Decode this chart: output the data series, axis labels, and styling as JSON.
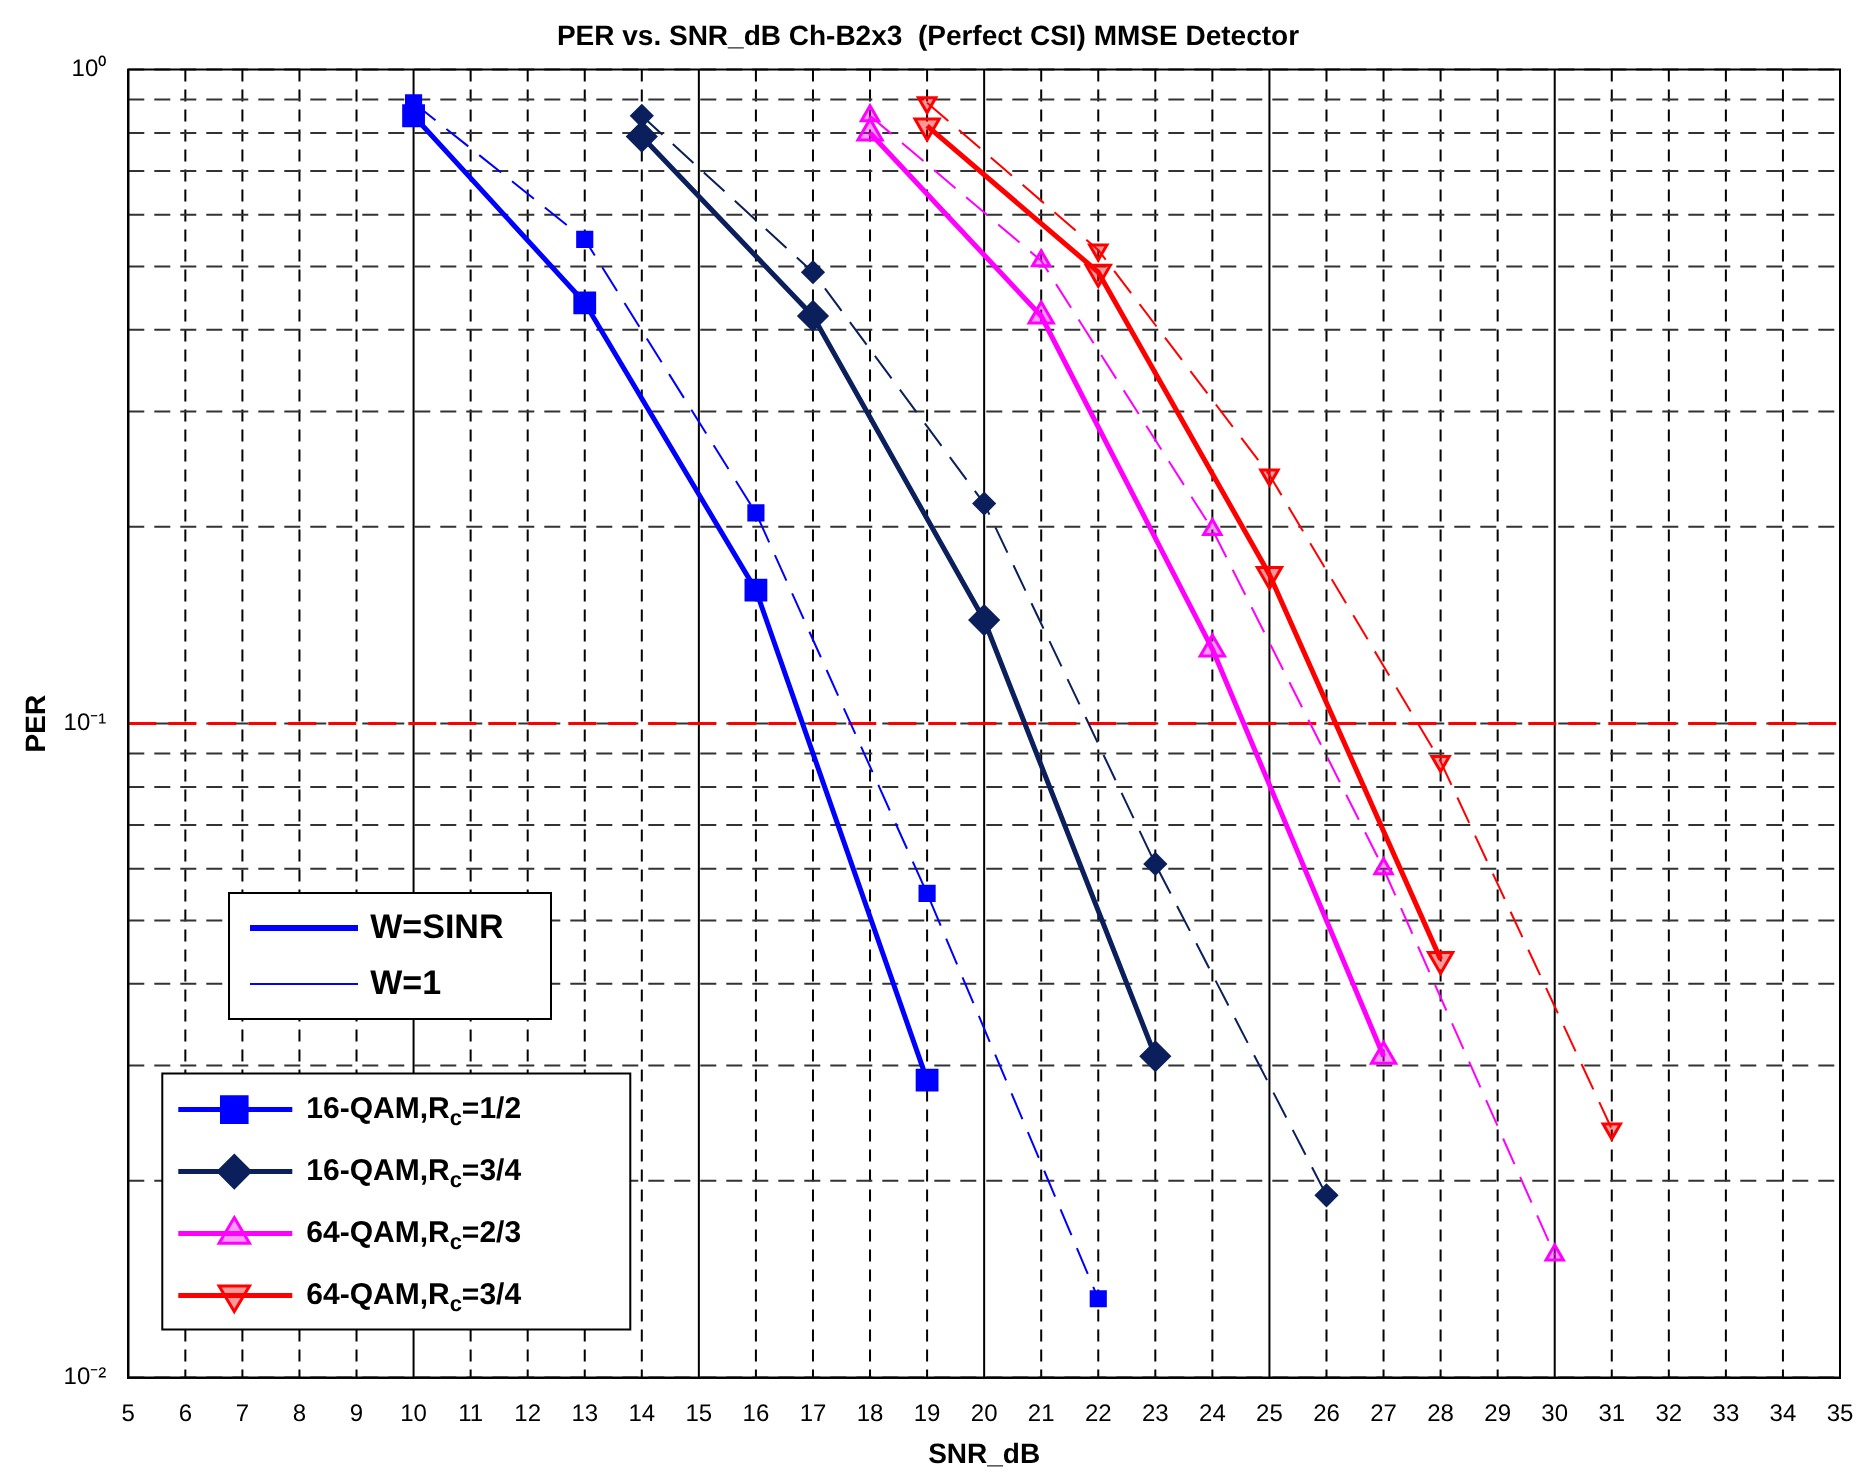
{
  "chart_data": {
    "type": "line",
    "title": "PER vs. SNR_dB Ch-B2x3  (Perfect CSI) MMSE Detector",
    "xlabel": "SNR_dB",
    "ylabel": "PER",
    "log": "y",
    "grid": true,
    "legend": "bottom left",
    "xlim": [
      5,
      35
    ],
    "xticks": [
      5,
      6,
      7,
      8,
      9,
      10,
      11,
      12,
      13,
      14,
      15,
      16,
      17,
      18,
      19,
      20,
      21,
      22,
      23,
      24,
      25,
      26,
      27,
      28,
      29,
      30,
      31,
      32,
      33,
      34,
      35
    ],
    "ylim": [
      0.01,
      1
    ],
    "yticks": [
      {
        "value": 0.01,
        "label": "10⁻²"
      },
      {
        "value": 0.02,
        "label": null
      },
      {
        "value": 0.03,
        "label": null
      },
      {
        "value": 0.04,
        "label": null
      },
      {
        "value": 0.05,
        "label": null
      },
      {
        "value": 0.06,
        "label": null
      },
      {
        "value": 0.07,
        "label": null
      },
      {
        "value": 0.08,
        "label": null
      },
      {
        "value": 0.09,
        "label": null
      },
      {
        "value": 0.1,
        "label": "10⁻¹"
      },
      {
        "value": 0.2,
        "label": null
      },
      {
        "value": 0.3,
        "label": null
      },
      {
        "value": 0.4,
        "label": null
      },
      {
        "value": 0.5,
        "label": null
      },
      {
        "value": 0.6,
        "label": null
      },
      {
        "value": 0.7,
        "label": null
      },
      {
        "value": 0.8,
        "label": null
      },
      {
        "value": 0.9,
        "label": null
      },
      {
        "value": 1,
        "label": "10⁰"
      }
    ],
    "ref_lines": [
      {
        "axis": "y",
        "value": 0.1,
        "color": "#ff0000",
        "line_style": "dashed"
      }
    ],
    "annotations": [
      "W=SINR",
      "W=1"
    ],
    "series": [
      {
        "name": "16-QAM,R$_{c}$=1/2",
        "color": "#0000ff",
        "marker": "square",
        "line_style": "solid",
        "x": [
          10,
          13,
          16,
          19
        ],
        "values": [
          0.85,
          0.44,
          0.16,
          0.0285
        ]
      },
      {
        "name": "16-QAM,R$_{c}$=3/4",
        "color": "#0a1f5c",
        "marker": "diamond",
        "line_style": "solid",
        "x": [
          14,
          17,
          20,
          23
        ],
        "values": [
          0.79,
          0.42,
          0.144,
          0.031
        ]
      },
      {
        "name": "64-QAM,R$_{c}$=2/3",
        "color": "#ff00ff",
        "marker": "triangle",
        "line_style": "solid",
        "x": [
          18,
          21,
          24,
          27
        ],
        "values": [
          0.8,
          0.42,
          0.13,
          0.031
        ]
      },
      {
        "name": "64-QAM,R$_{c}$=3/4",
        "color": "#ff0000",
        "marker": "triangle-down",
        "line_style": "solid",
        "x": [
          19,
          22,
          25,
          28
        ],
        "values": [
          0.82,
          0.49,
          0.169,
          0.0436
        ]
      },
      {
        "color": "#0000ff",
        "marker": "square",
        "line_style": "dashed",
        "x": [
          10,
          13,
          16,
          19,
          22
        ],
        "values": [
          0.89,
          0.55,
          0.21,
          0.055,
          0.0132
        ]
      },
      {
        "color": "#0a1f5c",
        "marker": "diamond",
        "line_style": "dashed",
        "x": [
          14,
          17,
          20,
          23,
          26
        ],
        "values": [
          0.85,
          0.49,
          0.217,
          0.061,
          0.019
        ]
      },
      {
        "color": "#ff00ff",
        "marker": "triangle",
        "line_style": "dashed",
        "x": [
          18,
          21,
          24,
          27,
          30
        ],
        "values": [
          0.85,
          0.51,
          0.198,
          0.06,
          0.0154
        ]
      },
      {
        "color": "#ff0000",
        "marker": "triangle-down",
        "line_style": "dashed",
        "x": [
          19,
          22,
          25,
          28,
          31
        ],
        "values": [
          0.89,
          0.53,
          0.24,
          0.0875,
          0.024
        ]
      }
    ]
  }
}
